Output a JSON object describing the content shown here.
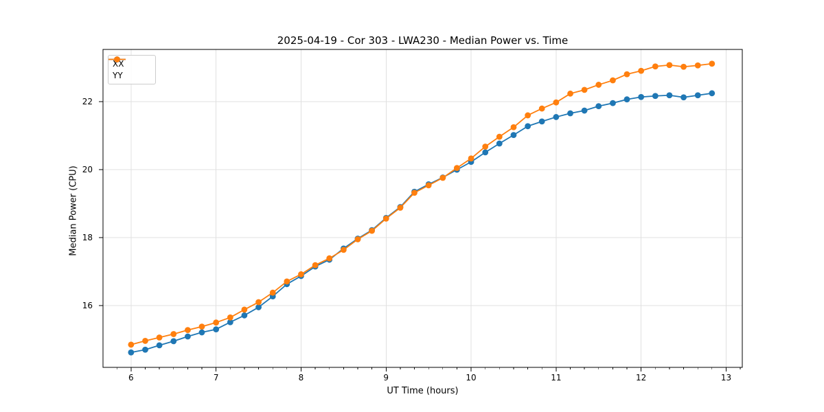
{
  "chart_data": {
    "type": "line",
    "title": "2025-04-19 - Cor 303 - LWA230 - Median Power vs. Time",
    "xlabel": "UT Time (hours)",
    "ylabel": "Median Power (CPU)",
    "x": [
      6.0,
      6.167,
      6.333,
      6.5,
      6.667,
      6.833,
      7.0,
      7.167,
      7.333,
      7.5,
      7.667,
      7.833,
      8.0,
      8.167,
      8.333,
      8.5,
      8.667,
      8.833,
      9.0,
      9.167,
      9.333,
      9.5,
      9.667,
      9.833,
      10.0,
      10.167,
      10.333,
      10.5,
      10.667,
      10.833,
      11.0,
      11.167,
      11.333,
      11.5,
      11.667,
      11.833,
      12.0,
      12.167,
      12.333,
      12.5,
      12.667,
      12.833
    ],
    "series": [
      {
        "name": "XX",
        "color": "#1f77b4",
        "values": [
          14.62,
          14.7,
          14.83,
          14.95,
          15.09,
          15.21,
          15.3,
          15.51,
          15.71,
          15.95,
          16.27,
          16.63,
          16.87,
          17.15,
          17.35,
          17.68,
          17.97,
          18.22,
          18.58,
          18.9,
          19.35,
          19.57,
          19.77,
          20.0,
          20.23,
          20.51,
          20.77,
          21.02,
          21.28,
          21.42,
          21.55,
          21.66,
          21.74,
          21.87,
          21.96,
          22.07,
          22.14,
          22.17,
          22.19,
          22.13,
          22.19,
          22.25
        ]
      },
      {
        "name": "YY",
        "color": "#ff7f0e",
        "values": [
          14.85,
          14.96,
          15.06,
          15.16,
          15.28,
          15.38,
          15.5,
          15.65,
          15.88,
          16.1,
          16.38,
          16.71,
          16.92,
          17.19,
          17.39,
          17.64,
          17.95,
          18.2,
          18.56,
          18.88,
          19.32,
          19.54,
          19.76,
          20.05,
          20.33,
          20.68,
          20.97,
          21.25,
          21.6,
          21.8,
          21.98,
          22.24,
          22.35,
          22.5,
          22.63,
          22.81,
          22.91,
          23.04,
          23.08,
          23.03,
          23.07,
          23.12
        ]
      }
    ],
    "x_ticks": [
      6,
      7,
      8,
      9,
      10,
      11,
      12,
      13
    ],
    "y_ticks": [
      16,
      18,
      20,
      22
    ],
    "xlim": [
      5.67,
      13.19
    ],
    "ylim": [
      14.18,
      23.54
    ],
    "x_minor_step": 0.16667,
    "grid": true,
    "grid_color": "#e0e0e0",
    "legend_position": "upper left"
  }
}
